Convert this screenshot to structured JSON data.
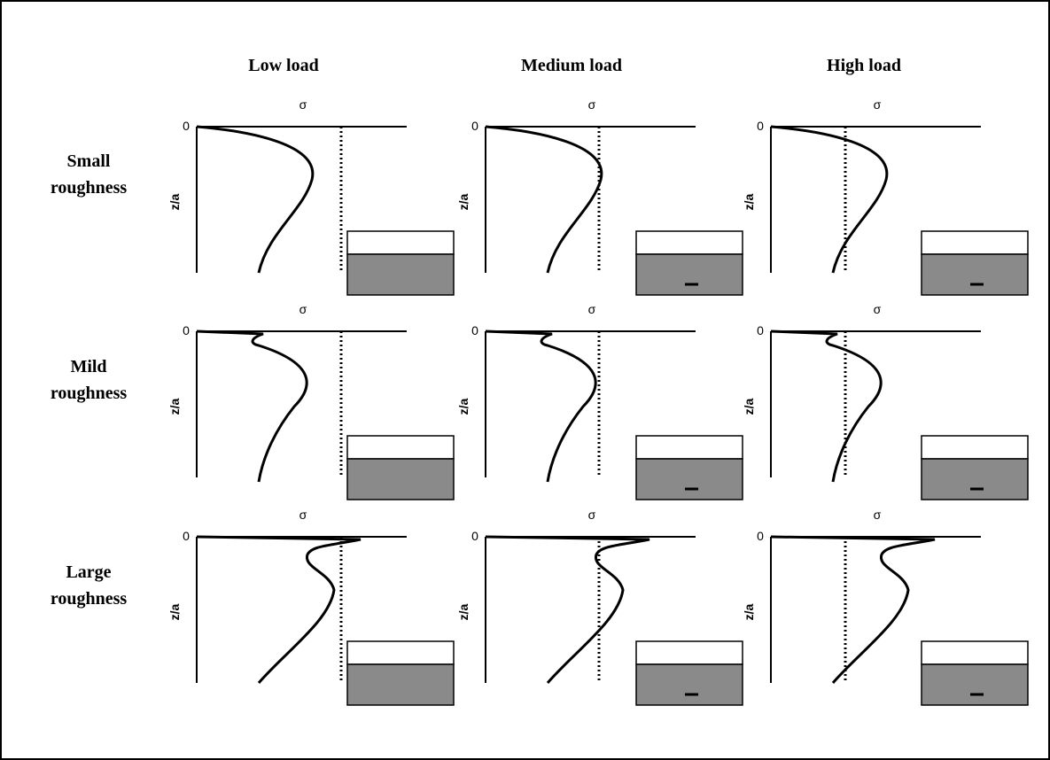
{
  "columns": [
    "Low load",
    "Medium load",
    "High load"
  ],
  "rows": [
    [
      "Small",
      "roughness"
    ],
    [
      "Mild",
      "roughness"
    ],
    [
      "Large",
      "roughness"
    ]
  ],
  "axis": {
    "stress": "σ",
    "depth": "z/a",
    "zero": "0"
  }
}
